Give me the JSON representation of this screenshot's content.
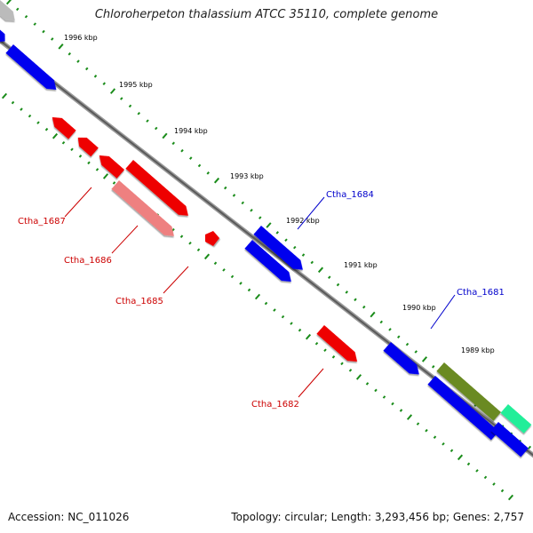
{
  "map": {
    "title": "Chloroherpeton thalassium ATCC 35110, complete genome",
    "accession": "Accession: NC_011026",
    "summary": "Topology: circular; Length: 3,293,456 bp; Genes: 2,757"
  },
  "colors": {
    "backbone": "#7a7a7a",
    "tick": "#1a8c1a",
    "forward_gene": "#0000ee",
    "reverse_gene": "#ee0000",
    "forward_label": "#0000cc",
    "reverse_label": "#cc0000",
    "scale_label": "#000000"
  },
  "scale": {
    "unit": "kbp",
    "labels": [
      "1996 kbp",
      "1995 kbp",
      "1994 kbp",
      "1993 kbp",
      "1992 kbp",
      "1991 kbp",
      "1990 kbp",
      "1989 kbp"
    ]
  },
  "genes": [
    {
      "name": "",
      "strand": "+",
      "color": "#0000ee"
    },
    {
      "name": "",
      "strand": "+",
      "color": "#0000ee"
    },
    {
      "name": "",
      "strand": "+",
      "color": "#bbbbbb"
    },
    {
      "name": "",
      "strand": "-",
      "color": "#ee0000"
    },
    {
      "name": "",
      "strand": "-",
      "color": "#ee0000"
    },
    {
      "name": "Ctha_1687",
      "strand": "-",
      "color": "#ee0000"
    },
    {
      "name": "Ctha_1686",
      "strand": "-",
      "color": "#ee8080"
    },
    {
      "name": "Ctha_1685",
      "strand": "-",
      "color": "#ee0000"
    },
    {
      "name": "Ctha_1684",
      "strand": "+",
      "color": "#0000ee"
    },
    {
      "name": "",
      "strand": "+",
      "color": "#0000ee"
    },
    {
      "name": "Ctha_1682",
      "strand": "-",
      "color": "#ee0000"
    },
    {
      "name": "Ctha_1681",
      "strand": "+",
      "color": "#0000ee"
    },
    {
      "name": "",
      "strand": "+",
      "color": "#0000ee"
    },
    {
      "name": "",
      "strand": "+",
      "color": "#0000ee"
    },
    {
      "name": "",
      "strand": "+",
      "color": "#6b8a22"
    },
    {
      "name": "",
      "strand": "+",
      "color": "#22ee99"
    }
  ]
}
